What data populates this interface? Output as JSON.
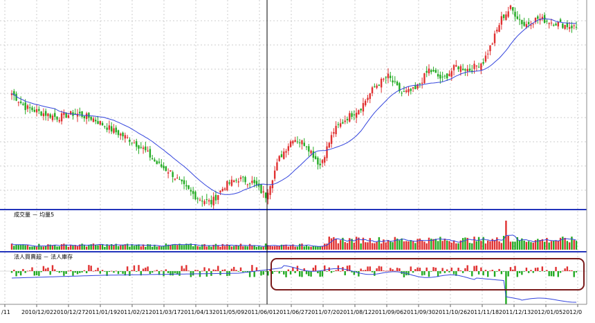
{
  "chart_data": [
    {
      "type": "candlestick",
      "panel": "price",
      "ma_series_color": "#3344dd",
      "up_color": "#e03030",
      "down_color": "#22aa22",
      "grid": true,
      "waypoints": [
        {
          "i": 0,
          "p": 165
        },
        {
          "i": 6,
          "p": 145
        },
        {
          "i": 12,
          "p": 138
        },
        {
          "i": 20,
          "p": 130
        },
        {
          "i": 28,
          "p": 136
        },
        {
          "i": 36,
          "p": 128
        },
        {
          "i": 44,
          "p": 112
        },
        {
          "i": 52,
          "p": 98
        },
        {
          "i": 58,
          "p": 84
        },
        {
          "i": 64,
          "p": 62
        },
        {
          "i": 70,
          "p": 50
        },
        {
          "i": 76,
          "p": 28
        },
        {
          "i": 82,
          "p": 12
        },
        {
          "i": 88,
          "p": 5
        },
        {
          "i": 94,
          "p": 30
        },
        {
          "i": 100,
          "p": 40
        },
        {
          "i": 106,
          "p": 35
        },
        {
          "i": 112,
          "p": 15
        },
        {
          "i": 118,
          "p": 70
        },
        {
          "i": 124,
          "p": 100
        },
        {
          "i": 130,
          "p": 90
        },
        {
          "i": 136,
          "p": 60
        },
        {
          "i": 142,
          "p": 110
        },
        {
          "i": 148,
          "p": 130
        },
        {
          "i": 154,
          "p": 145
        },
        {
          "i": 160,
          "p": 175
        },
        {
          "i": 166,
          "p": 190
        },
        {
          "i": 172,
          "p": 165
        },
        {
          "i": 178,
          "p": 170
        },
        {
          "i": 184,
          "p": 200
        },
        {
          "i": 190,
          "p": 185
        },
        {
          "i": 196,
          "p": 205
        },
        {
          "i": 202,
          "p": 200
        },
        {
          "i": 208,
          "p": 212
        },
        {
          "i": 212,
          "p": 240
        },
        {
          "i": 216,
          "p": 275
        },
        {
          "i": 220,
          "p": 290
        },
        {
          "i": 226,
          "p": 265
        },
        {
          "i": 232,
          "p": 275
        },
        {
          "i": 238,
          "p": 270
        },
        {
          "i": 244,
          "p": 265
        },
        {
          "i": 249,
          "p": 262
        }
      ]
    },
    {
      "type": "bar",
      "panel": "volume",
      "title": "成交量 － 均量5",
      "spike_index": 218,
      "up_color": "#e03030",
      "down_color": "#22aa22",
      "ma_color": "#3344dd"
    },
    {
      "type": "bar",
      "panel": "institutional",
      "title": "法人買賣超 － 法人庫存",
      "spike_index": 218,
      "up_color": "#e03030",
      "down_color": "#22aa22",
      "line_color": "#3344dd",
      "highlight_color": "#7a1a1a"
    }
  ],
  "x_ticks": [
    "/11",
    "2010/12/02",
    "2010/12/27",
    "2011/01/19",
    "2011/02/21",
    "2011/03/17",
    "2011/04/13",
    "2011/05/09",
    "2011/06/01",
    "2011/06/27",
    "2011/07/20",
    "2011/08/12",
    "2011/09/06",
    "2011/09/30",
    "2011/10/26",
    "2011/11/18",
    "2011/12/13",
    "2012/01/05",
    "2012/0"
  ],
  "volume_label": "成交量 － 均量5",
  "inst_label": "法人買賣超 － 法人庫存"
}
